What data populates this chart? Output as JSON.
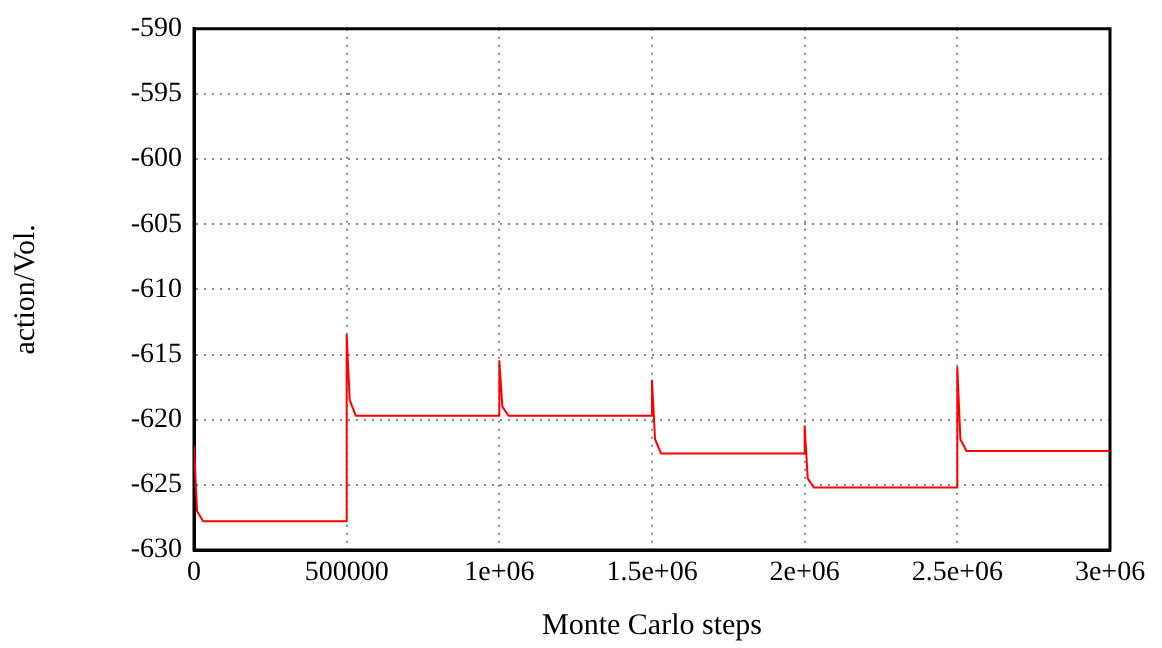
{
  "chart_data": {
    "type": "line",
    "xlabel": "Monte Carlo steps",
    "ylabel": "action/Vol.",
    "x": [
      0,
      10000,
      30000,
      500000,
      500000,
      510000,
      530000,
      1000000,
      1000000,
      1010000,
      1030000,
      1500000,
      1500000,
      1510000,
      1530000,
      2000000,
      2000000,
      2010000,
      2030000,
      2500000,
      2500000,
      2510000,
      2530000,
      3000000
    ],
    "series": [
      {
        "color": "#ff0000",
        "values": [
          -622,
          -627,
          -627.8,
          -627.8,
          -613.5,
          -618.5,
          -619.7,
          -619.7,
          -615.5,
          -619,
          -619.7,
          -619.7,
          -617,
          -621.5,
          -622.6,
          -622.6,
          -620.5,
          -624.5,
          -625.2,
          -625.2,
          -616,
          -621.5,
          -622.4,
          -622.4
        ]
      }
    ],
    "xlim": [
      0,
      3000000
    ],
    "xticks": [
      0,
      500000,
      {
        "value": 1000000,
        "label": "1e+06"
      },
      {
        "value": 1500000,
        "label": "1.5e+06"
      },
      {
        "value": 2000000,
        "label": "2e+06"
      },
      {
        "value": 2500000,
        "label": "2.5e+06"
      },
      {
        "value": 3000000,
        "label": "3e+06"
      }
    ],
    "ylim": [
      -630,
      -590
    ],
    "yticks": [
      -630,
      -625,
      -620,
      -615,
      -610,
      -605,
      -600,
      -595,
      -590
    ],
    "grid": true,
    "legend": false,
    "marker": "none",
    "line_style": "solid"
  }
}
